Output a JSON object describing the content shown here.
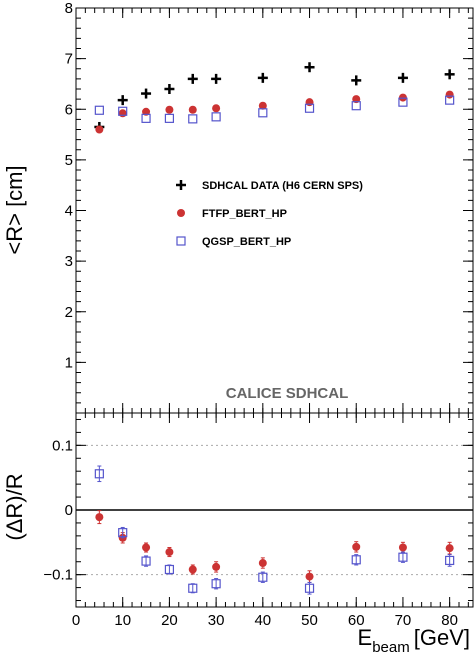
{
  "chart_data": [
    {
      "type": "scatter",
      "panel": "main",
      "ylabel": "<R> [cm]",
      "xlim": [
        0,
        85
      ],
      "ylim": [
        0,
        8
      ],
      "yticks": [
        1,
        2,
        3,
        4,
        5,
        6,
        7,
        8
      ],
      "grid": false,
      "legend_position": "center",
      "annotation": "CALICE SDHCAL",
      "annotation_color": "#666666",
      "series": [
        {
          "name": "SDHCAL DATA (H6 CERN SPS)",
          "marker": "plus",
          "color": "#000000",
          "x": [
            5,
            10,
            15,
            20,
            25,
            30,
            40,
            50,
            60,
            70,
            80
          ],
          "y": [
            5.65,
            6.18,
            6.31,
            6.4,
            6.6,
            6.6,
            6.62,
            6.83,
            6.57,
            6.62,
            6.69
          ]
        },
        {
          "name": "FTFP_BERT_HP",
          "marker": "circle",
          "color": "#cc3333",
          "x": [
            5,
            10,
            15,
            20,
            25,
            30,
            40,
            50,
            60,
            70,
            80
          ],
          "y": [
            5.6,
            5.92,
            5.95,
            5.99,
            5.99,
            6.02,
            6.07,
            6.14,
            6.2,
            6.23,
            6.29
          ]
        },
        {
          "name": "QGSP_BERT_HP",
          "marker": "open-square",
          "color": "#5555cc",
          "x": [
            5,
            10,
            15,
            20,
            25,
            30,
            40,
            50,
            60,
            70,
            80
          ],
          "y": [
            5.98,
            5.96,
            5.82,
            5.82,
            5.81,
            5.85,
            5.93,
            6.02,
            6.07,
            6.14,
            6.18
          ]
        }
      ]
    },
    {
      "type": "scatter",
      "panel": "ratio",
      "ylabel": "(ΔR)/R",
      "xlabel": "E",
      "xlabel_sub": "beam",
      "xlabel_unit": "[GeV]",
      "xlim": [
        0,
        85
      ],
      "ylim": [
        -0.15,
        0.15
      ],
      "xticks": [
        0,
        10,
        20,
        30,
        40,
        50,
        60,
        70,
        80
      ],
      "yticks": [
        -0.1,
        0,
        0.1
      ],
      "ytick_labels": [
        "−0.1",
        "0",
        "0.1"
      ],
      "grid": "dotted horizontal at ±0.1",
      "series": [
        {
          "name": "FTFP_BERT_HP",
          "marker": "circle",
          "color": "#cc3333",
          "x": [
            5,
            10,
            15,
            20,
            25,
            30,
            40,
            50,
            60,
            70,
            80
          ],
          "y": [
            -0.011,
            -0.043,
            -0.058,
            -0.065,
            -0.092,
            -0.088,
            -0.082,
            -0.103,
            -0.057,
            -0.058,
            -0.059
          ],
          "err": [
            0.01,
            0.008,
            0.007,
            0.007,
            0.007,
            0.008,
            0.008,
            0.009,
            0.008,
            0.008,
            0.009
          ]
        },
        {
          "name": "QGSP_BERT_HP",
          "marker": "open-square",
          "color": "#5555cc",
          "x": [
            5,
            10,
            15,
            20,
            25,
            30,
            40,
            50,
            60,
            70,
            80
          ],
          "y": [
            0.056,
            -0.035,
            -0.079,
            -0.092,
            -0.121,
            -0.114,
            -0.104,
            -0.121,
            -0.077,
            -0.073,
            -0.078
          ],
          "err": [
            0.012,
            0.008,
            0.008,
            0.007,
            0.007,
            0.008,
            0.008,
            0.009,
            0.008,
            0.008,
            0.009
          ]
        }
      ]
    }
  ]
}
